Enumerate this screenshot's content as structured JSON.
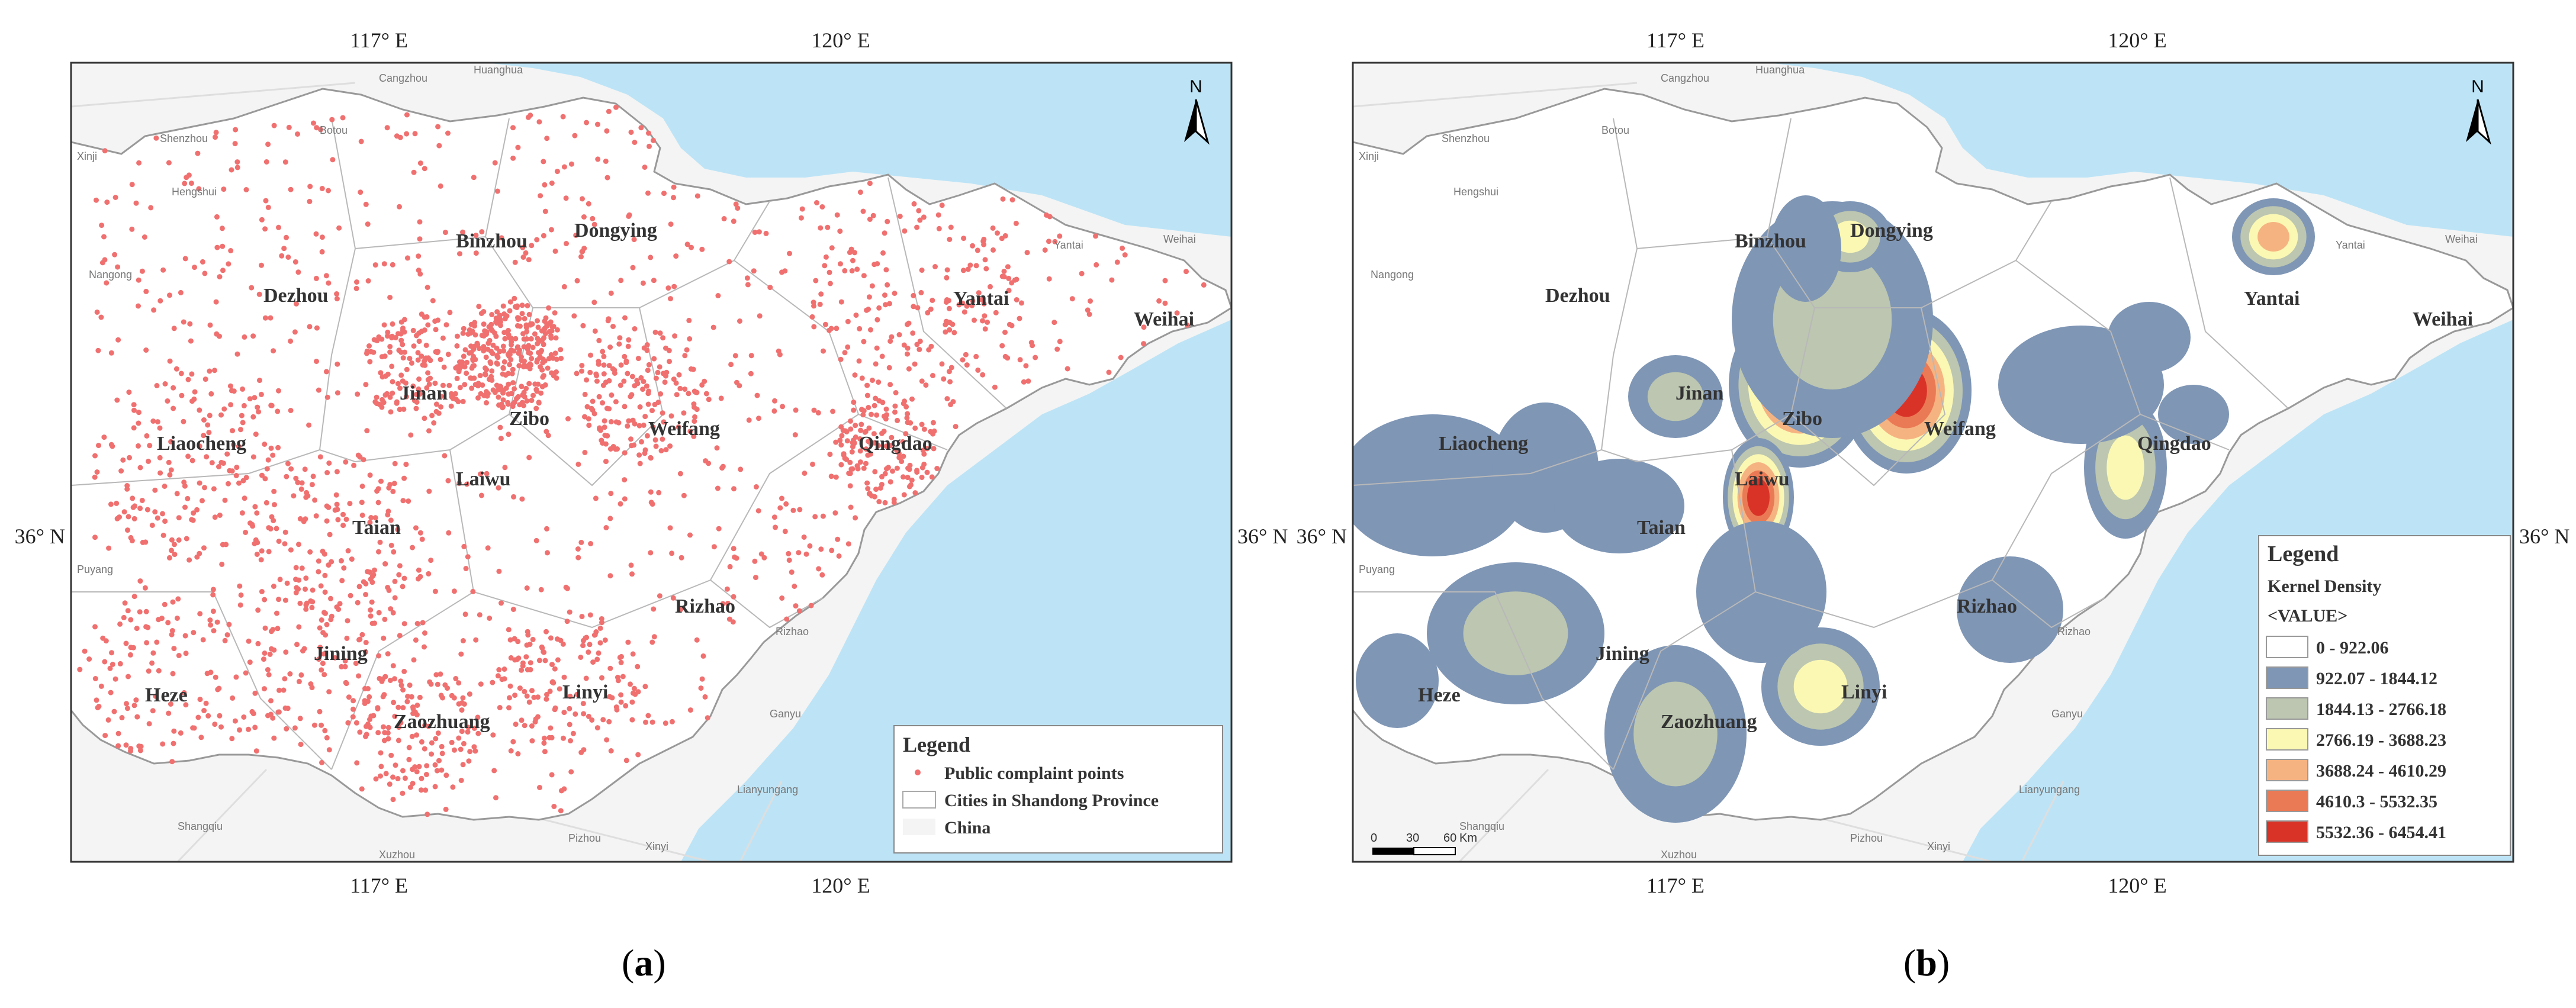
{
  "panels": [
    {
      "label": "a",
      "grid_labels": {
        "top": [
          "117° E",
          "120° E"
        ],
        "bottom": [
          "117° E",
          "120° E"
        ],
        "left": "36° N",
        "right": "36° N"
      },
      "north_arrow": "N",
      "cities": [
        "Binzhou",
        "Dongying",
        "Dezhou",
        "Yantai",
        "Weihai",
        "Jinan",
        "Zibo",
        "Weifang",
        "Liaocheng",
        "Qingdao",
        "Laiwu",
        "Taian",
        "Rizhao",
        "Jining",
        "Heze",
        "Linyi",
        "Zaozhuang"
      ],
      "basemap_labels": [
        "Cangzhou",
        "Huanghua",
        "Botou",
        "Xinji",
        "Shenzhou",
        "Hengshui",
        "Nangong",
        "Yantai",
        "Weihai",
        "Puyang",
        "Shangqiu",
        "Xuzhou",
        "Pizhou",
        "Xinyi",
        "Lianyungang",
        "Ganyu",
        "Rizhao"
      ],
      "legend": {
        "title": "Legend",
        "items": [
          "Public complaint points",
          "Cities in Shandong Province",
          "China"
        ]
      },
      "colors": {
        "points": "#f07070",
        "sea": "#bde4f6",
        "province": "#ffffff",
        "outside": "#f3f3f3"
      }
    },
    {
      "label": "b",
      "grid_labels": {
        "top": [
          "117° E",
          "120° E"
        ],
        "bottom": [
          "117° E",
          "120° E"
        ],
        "left": "36° N",
        "right": "36° N"
      },
      "north_arrow": "N",
      "cities": [
        "Binzhou",
        "Dongying",
        "Dezhou",
        "Yantai",
        "Weihai",
        "Jinan",
        "Zibo",
        "Weifang",
        "Liaocheng",
        "Qingdao",
        "Laiwu",
        "Taian",
        "Rizhao",
        "Jining",
        "Heze",
        "Linyi",
        "Zaozhuang"
      ],
      "basemap_labels": [
        "Cangzhou",
        "Huanghua",
        "Botou",
        "Xinji",
        "Shenzhou",
        "Hengshui",
        "Nangong",
        "Yantai",
        "Weihai",
        "Puyang",
        "Shangqiu",
        "Xuzhou",
        "Pizhou",
        "Xinyi",
        "Lianyungang",
        "Ganyu",
        "Rizhao"
      ],
      "scale_bar": {
        "ticks": [
          "0",
          "30",
          "60"
        ],
        "unit": "Km"
      },
      "legend": {
        "title": "Legend",
        "subtitle": "Kernel Density",
        "value_label": "<VALUE>",
        "classes": [
          {
            "range": "0 - 922.06",
            "color": "#ffffff"
          },
          {
            "range": "922.07 - 1844.12",
            "color": "#7f96b5"
          },
          {
            "range": "1844.13 - 2766.18",
            "color": "#bcc6b0"
          },
          {
            "range": "2766.19 - 3688.23",
            "color": "#fbf8b4"
          },
          {
            "range": "3688.24 - 4610.29",
            "color": "#f6b382"
          },
          {
            "range": "4610.3 - 5532.35",
            "color": "#ea7a55"
          },
          {
            "range": "5532.36 - 6454.41",
            "color": "#d93328"
          }
        ]
      }
    }
  ]
}
